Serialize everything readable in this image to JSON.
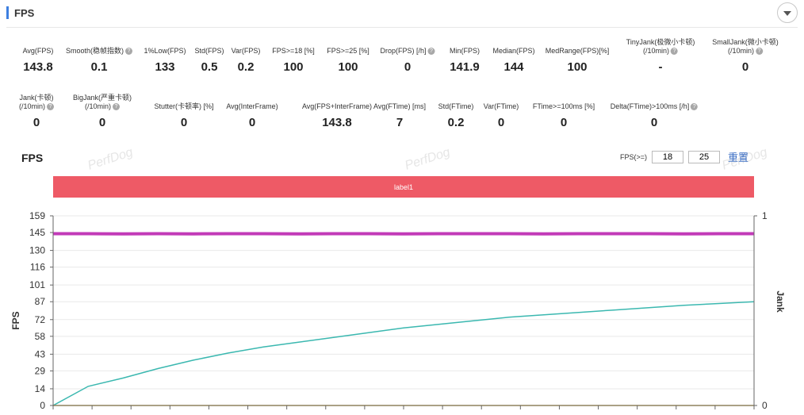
{
  "panel": {
    "title": "FPS"
  },
  "stats_row1": [
    {
      "label": "Avg(FPS)",
      "value": "143.8",
      "help": false
    },
    {
      "label": "Smooth(稳帧指数)",
      "value": "0.1",
      "help": true
    },
    {
      "label": "1%Low(FPS)",
      "value": "133",
      "help": false
    },
    {
      "label": "Std(FPS)",
      "value": "0.5",
      "help": false
    },
    {
      "label": "Var(FPS)",
      "value": "0.2",
      "help": false
    },
    {
      "label": "FPS>=18 [%]",
      "value": "100",
      "help": false
    },
    {
      "label": "FPS>=25 [%]",
      "value": "100",
      "help": false
    },
    {
      "label": "Drop(FPS) [/h]",
      "value": "0",
      "help": true
    },
    {
      "label": "Min(FPS)",
      "value": "141.9",
      "help": false
    },
    {
      "label": "Median(FPS)",
      "value": "144",
      "help": false
    },
    {
      "label": "MedRange(FPS)[%]",
      "value": "100",
      "help": false
    },
    {
      "label": "TinyJank(极微小卡顿)",
      "label2": "(/10min)",
      "value": "-",
      "help": true
    },
    {
      "label": "SmallJank(微小卡顿)",
      "label2": "(/10min)",
      "value": "0",
      "help": true
    }
  ],
  "stats_row2": [
    {
      "label": "Jank(卡顿)",
      "label2": "(/10min)",
      "value": "0",
      "help": true
    },
    {
      "label": "BigJank(严重卡顿)",
      "label2": "(/10min)",
      "value": "0",
      "help": true
    },
    {
      "label": "Stutter(卡顿率) [%]",
      "value": "0",
      "help": false
    },
    {
      "label": "Avg(InterFrame)",
      "value": "0",
      "help": false
    },
    {
      "label": "Avg(FPS+InterFrame)",
      "value": "143.8",
      "help": false
    },
    {
      "label": "Avg(FTime) [ms]",
      "value": "7",
      "help": false
    },
    {
      "label": "Std(FTime)",
      "value": "0.2",
      "help": false
    },
    {
      "label": "Var(FTime)",
      "value": "0",
      "help": false
    },
    {
      "label": "FTime>=100ms [%]",
      "value": "0",
      "help": false
    },
    {
      "label": "Delta(FTime)>100ms [/h]",
      "value": "0",
      "help": true
    }
  ],
  "chart": {
    "title": "FPS",
    "watermark": "PerfDog",
    "threshold_label": "FPS(>=)",
    "threshold_values": [
      "18",
      "25"
    ],
    "reset_label": "重置",
    "label_bar_text": "label1",
    "left_axis_title": "FPS",
    "right_axis_title": "Jank",
    "left_ticks": [
      "159",
      "145",
      "130",
      "116",
      "101",
      "87",
      "72",
      "58",
      "43",
      "29",
      "14",
      "0"
    ],
    "right_ticks": [
      "1",
      "0"
    ]
  },
  "chart_data": {
    "type": "line",
    "ylim": [
      0,
      159
    ],
    "y2lim": [
      0,
      1
    ],
    "series": [
      {
        "color": "#c23ab8",
        "values": [
          144,
          144,
          143.8,
          144,
          143.9,
          144,
          144,
          143.8,
          144,
          144,
          143.9,
          144,
          144,
          144,
          143.8,
          144,
          144,
          144,
          143.9,
          144,
          144
        ]
      },
      {
        "color": "#3bb8b0",
        "values": [
          0,
          16,
          23,
          31,
          38,
          44,
          49,
          53,
          57,
          61,
          65,
          68,
          71,
          74,
          76,
          78,
          80,
          82,
          84,
          85.5,
          87
        ]
      },
      {
        "color": "#e0b84a",
        "values": [
          0,
          0,
          0,
          0,
          0,
          0,
          0,
          0,
          0,
          0,
          0,
          0,
          0,
          0,
          0,
          0,
          0,
          0,
          0,
          0,
          0
        ]
      }
    ],
    "colors": {
      "fps_line": "#c23ab8",
      "smooth_line": "#3bb8b0",
      "jank_line": "#e0b84a",
      "label_bar": "#ee5a66"
    }
  }
}
